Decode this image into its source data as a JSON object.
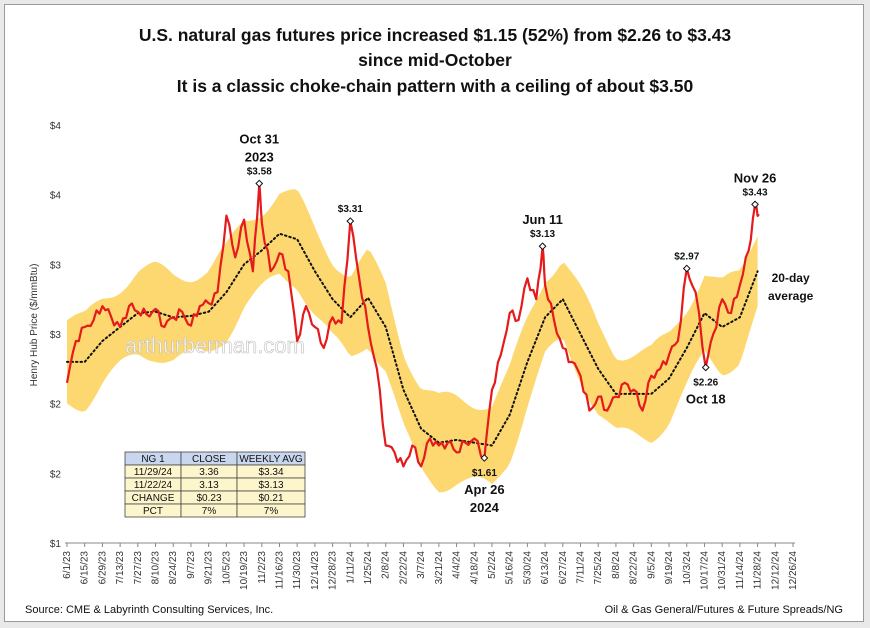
{
  "title": {
    "line1": "U.S. natural gas futures price increased $1.15 (52%) from $2.26 to $3.43",
    "line2": "since mid-October",
    "line3": "It is a classic choke-chain pattern with a ceiling of about $3.50"
  },
  "footer": {
    "source": "Source: CME & Labyrinth Consulting Services, Inc.",
    "category": "Oil & Gas General/Futures & Future Spreads/NG"
  },
  "watermark": "arthurberman.com",
  "colors": {
    "price": "#e41a1c",
    "band": "#fdd870",
    "average": "#111111",
    "table_header": "#c9d7ee",
    "table_body": "#fdf5cc"
  },
  "table": {
    "headers": [
      "NG 1",
      "CLOSE",
      "WEEKLY AVG"
    ],
    "rows": [
      [
        "11/29/24",
        "3.36",
        "$3.34"
      ],
      [
        "11/22/24",
        "3.13",
        "$3.13"
      ],
      [
        "CHANGE",
        "$0.23",
        "$0.21"
      ],
      [
        "PCT",
        "7%",
        "7%"
      ]
    ]
  },
  "chart_data": {
    "type": "line",
    "title": "U.S. natural gas futures price increased $1.15 (52%) from $2.26 to $3.43 since mid-October",
    "ylabel": "Henry Hub Price ($/mmBtu)",
    "xlabel": "",
    "y_tick_labels": [
      "$1",
      "$2",
      "$2",
      "$3",
      "$3",
      "$4",
      "$4"
    ],
    "y_tick_values": [
      1.0,
      1.5,
      2.0,
      2.5,
      3.0,
      3.5,
      4.0
    ],
    "ylim": [
      1.0,
      4.0
    ],
    "x_tick_labels": [
      "6/1/23",
      "6/15/23",
      "6/29/23",
      "7/13/23",
      "7/27/23",
      "8/10/23",
      "8/24/23",
      "9/7/23",
      "9/21/23",
      "10/5/23",
      "10/19/23",
      "11/2/23",
      "11/16/23",
      "11/30/23",
      "12/14/23",
      "12/28/23",
      "1/11/24",
      "1/25/24",
      "2/8/24",
      "2/22/24",
      "3/7/24",
      "3/21/24",
      "4/4/24",
      "4/18/24",
      "5/2/24",
      "5/16/24",
      "5/30/24",
      "6/13/24",
      "6/27/24",
      "7/11/24",
      "7/25/24",
      "8/8/24",
      "8/22/24",
      "9/5/24",
      "9/19/24",
      "10/3/24",
      "10/17/24",
      "10/31/24",
      "11/14/24",
      "11/28/24",
      "12/12/24",
      "12/26/24"
    ],
    "xlim": [
      "6/1/23",
      "12/26/24"
    ],
    "grid": false,
    "legend": "none",
    "series": [
      {
        "name": "",
        "x": [
          "6/1/23",
          "6/8/23",
          "6/15/23",
          "6/22/23",
          "6/29/23",
          "7/6/23",
          "7/13/23",
          "7/20/23",
          "7/27/23",
          "8/3/23",
          "8/10/23",
          "8/17/23",
          "8/24/23",
          "8/31/23",
          "9/7/23",
          "9/14/23",
          "9/21/23",
          "9/28/23",
          "10/5/23",
          "10/12/23",
          "10/19/23",
          "10/26/23",
          "10/31/23",
          "11/2/23",
          "11/9/23",
          "11/16/23",
          "11/23/23",
          "11/30/23",
          "12/7/23",
          "12/14/23",
          "12/21/23",
          "12/28/23",
          "1/4/24",
          "1/11/24",
          "1/18/24",
          "1/25/24",
          "2/1/24",
          "2/8/24",
          "2/15/24",
          "2/22/24",
          "2/29/24",
          "3/7/24",
          "3/14/24",
          "3/21/24",
          "3/28/24",
          "4/4/24",
          "4/11/24",
          "4/18/24",
          "4/26/24",
          "5/2/24",
          "5/9/24",
          "5/16/24",
          "5/23/24",
          "5/30/24",
          "6/6/24",
          "6/11/24",
          "6/13/24",
          "6/20/24",
          "6/27/24",
          "7/4/24",
          "7/11/24",
          "7/18/24",
          "7/25/24",
          "8/1/24",
          "8/8/24",
          "8/15/24",
          "8/22/24",
          "8/29/24",
          "9/5/24",
          "9/12/24",
          "9/19/24",
          "9/26/24",
          "10/3/24",
          "10/10/24",
          "10/18/24",
          "10/24/24",
          "10/31/24",
          "11/7/24",
          "11/14/24",
          "11/21/24",
          "11/26/24",
          "11/29/24"
        ],
        "values": [
          2.15,
          2.45,
          2.55,
          2.6,
          2.7,
          2.62,
          2.55,
          2.7,
          2.66,
          2.64,
          2.68,
          2.55,
          2.62,
          2.66,
          2.56,
          2.7,
          2.72,
          2.8,
          3.35,
          3.05,
          3.32,
          2.95,
          3.58,
          3.3,
          2.95,
          3.08,
          2.95,
          2.45,
          2.7,
          2.55,
          2.4,
          2.62,
          2.58,
          3.31,
          2.9,
          2.55,
          2.25,
          1.7,
          1.65,
          1.55,
          1.7,
          1.55,
          1.75,
          1.7,
          1.72,
          1.65,
          1.72,
          1.75,
          1.61,
          2.1,
          2.35,
          2.65,
          2.6,
          2.9,
          2.75,
          3.13,
          2.85,
          2.6,
          2.4,
          2.3,
          2.2,
          1.95,
          2.05,
          1.95,
          2.05,
          2.15,
          2.1,
          1.95,
          2.2,
          2.25,
          2.35,
          2.45,
          2.97,
          2.8,
          2.26,
          2.5,
          2.75,
          2.65,
          2.85,
          3.1,
          3.43,
          3.36
        ]
      },
      {
        "name": "20-day average",
        "x": [
          "6/1/23",
          "6/15/23",
          "6/29/23",
          "7/13/23",
          "7/27/23",
          "8/10/23",
          "8/24/23",
          "9/7/23",
          "9/21/23",
          "10/5/23",
          "10/19/23",
          "11/2/23",
          "11/16/23",
          "11/30/23",
          "12/14/23",
          "12/28/23",
          "1/11/24",
          "1/25/24",
          "2/8/24",
          "2/22/24",
          "3/7/24",
          "3/21/24",
          "4/4/24",
          "4/18/24",
          "5/2/24",
          "5/16/24",
          "5/30/24",
          "6/13/24",
          "6/27/24",
          "7/11/24",
          "7/25/24",
          "8/8/24",
          "8/22/24",
          "9/5/24",
          "9/19/24",
          "10/3/24",
          "10/17/24",
          "10/31/24",
          "11/14/24",
          "11/28/24"
        ],
        "values": [
          2.3,
          2.3,
          2.45,
          2.55,
          2.65,
          2.66,
          2.62,
          2.63,
          2.66,
          2.8,
          3.0,
          3.1,
          3.22,
          3.18,
          2.95,
          2.75,
          2.62,
          2.76,
          2.55,
          2.1,
          1.82,
          1.72,
          1.74,
          1.72,
          1.7,
          1.92,
          2.3,
          2.62,
          2.75,
          2.5,
          2.25,
          2.07,
          2.07,
          2.07,
          2.18,
          2.4,
          2.65,
          2.55,
          2.62,
          2.95
        ]
      }
    ],
    "annotations": [
      {
        "text": "Oct 31",
        "x": "10/31/23",
        "y": 3.58
      },
      {
        "text": "2023",
        "x": "10/31/23",
        "y": 3.58
      },
      {
        "text": "$3.58",
        "x": "10/31/23",
        "y": 3.58
      },
      {
        "text": "$3.31",
        "x": "1/11/24",
        "y": 3.31
      },
      {
        "text": "Jun 11",
        "x": "6/11/24",
        "y": 3.13
      },
      {
        "text": "$3.13",
        "x": "6/11/24",
        "y": 3.13
      },
      {
        "text": "$1.61",
        "x": "4/26/24",
        "y": 1.61
      },
      {
        "text": "Apr 26",
        "x": "4/26/24",
        "y": 1.61
      },
      {
        "text": "2024",
        "x": "4/26/24",
        "y": 1.61
      },
      {
        "text": "$2.97",
        "x": "10/3/24",
        "y": 2.97
      },
      {
        "text": "$2.26",
        "x": "10/18/24",
        "y": 2.26
      },
      {
        "text": "Oct 18",
        "x": "10/18/24",
        "y": 2.26
      },
      {
        "text": "Nov 26",
        "x": "11/26/24",
        "y": 3.43
      },
      {
        "text": "$3.43",
        "x": "11/26/24",
        "y": 3.43
      },
      {
        "text": "20-day",
        "x": "12/2/24",
        "y": 2.8
      },
      {
        "text": "average",
        "x": "12/2/24",
        "y": 2.8
      }
    ]
  }
}
